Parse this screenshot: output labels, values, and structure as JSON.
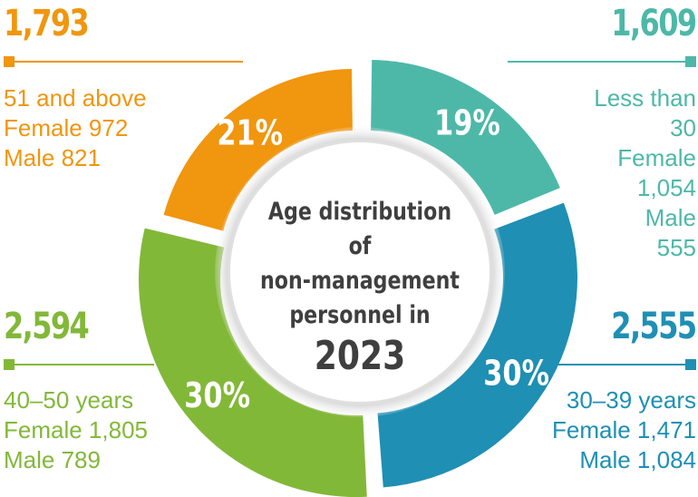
{
  "chart_data": {
    "type": "pie",
    "title": "Age distribution of non-management personnel in 2023",
    "title_lines": [
      "Age distribution of",
      "non-management",
      "personnel in"
    ],
    "title_year": "2023",
    "slices": [
      {
        "label": "Less than 30",
        "label_lines": [
          "Less than",
          "30"
        ],
        "percent": 19,
        "percent_label": "19%",
        "total": 1609,
        "total_label": "1,609",
        "female_label": [
          "Female",
          "1,054"
        ],
        "male_label": [
          "Male",
          "555"
        ],
        "color": "#4db8a8"
      },
      {
        "label": "30–39 years",
        "label_lines": [
          "30–39 years"
        ],
        "percent": 30,
        "percent_label": "30%",
        "total": 2555,
        "total_label": "2,555",
        "female_label": [
          "Female 1,471"
        ],
        "male_label": [
          "Male 1,084"
        ],
        "color": "#1f8fb4"
      },
      {
        "label": "40–50 years",
        "label_lines": [
          "40–50 years"
        ],
        "percent": 30,
        "percent_label": "30%",
        "total": 2594,
        "total_label": "2,594",
        "female_label": [
          "Female 1,805"
        ],
        "male_label": [
          "Male 789"
        ],
        "color": "#82b838"
      },
      {
        "label": "51 and above",
        "label_lines": [
          "51 and above"
        ],
        "percent": 21,
        "percent_label": "21%",
        "total": 1793,
        "total_label": "1,793",
        "female_label": [
          "Female 972"
        ],
        "male_label": [
          "Male 821"
        ],
        "color": "#f0960f"
      }
    ]
  }
}
